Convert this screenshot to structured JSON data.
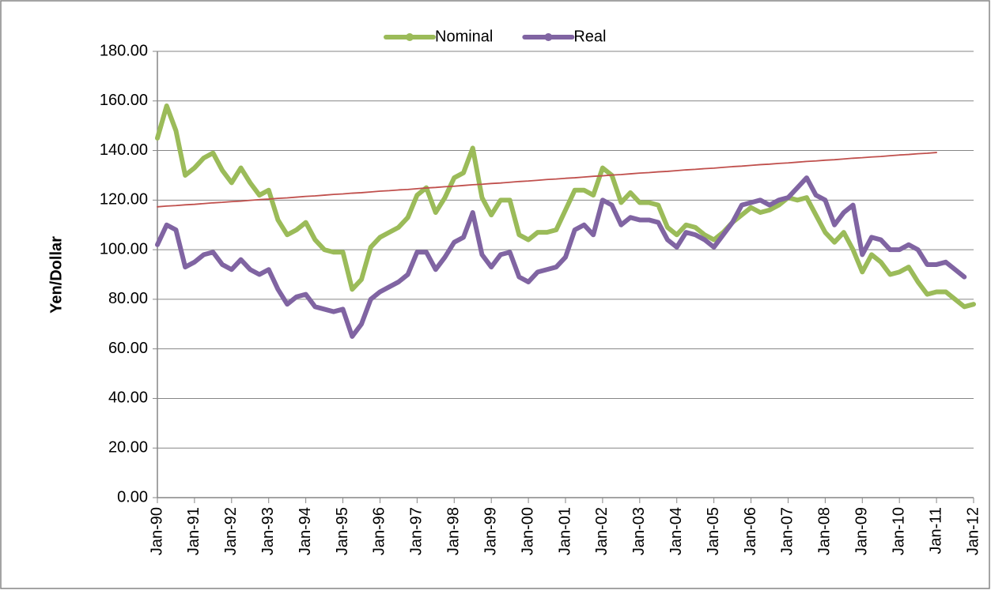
{
  "chart_data": {
    "type": "line",
    "y_label": "Yen/Dollar",
    "categories": [
      "Jan-90",
      null,
      null,
      null,
      "Jan-91",
      null,
      null,
      null,
      "Jan-92",
      null,
      null,
      null,
      "Jan-93",
      null,
      null,
      null,
      "Jan-94",
      null,
      null,
      null,
      "Jan-95",
      null,
      null,
      null,
      "Jan-96",
      null,
      null,
      null,
      "Jan-97",
      null,
      null,
      null,
      "Jan-98",
      null,
      null,
      null,
      "Jan-99",
      null,
      null,
      null,
      "Jan-00",
      null,
      null,
      null,
      "Jan-01",
      null,
      null,
      null,
      "Jan-02",
      null,
      null,
      null,
      "Jan-03",
      null,
      null,
      null,
      "Jan-04",
      null,
      null,
      null,
      "Jan-05",
      null,
      null,
      null,
      "Jan-06",
      null,
      null,
      null,
      "Jan-07",
      null,
      null,
      null,
      "Jan-08",
      null,
      null,
      null,
      "Jan-09",
      null,
      null,
      null,
      "Jan-10",
      null,
      null,
      null,
      "Jan-11",
      null,
      null,
      null,
      "Jan-12"
    ],
    "series": [
      {
        "name": "Nominal",
        "color": "#9bbb59",
        "values": [
          145,
          158,
          148,
          130,
          133,
          137,
          139,
          132,
          127,
          133,
          127,
          122,
          124,
          112,
          106,
          108,
          111,
          104,
          100,
          99,
          99,
          84,
          88,
          101,
          105,
          107,
          109,
          113,
          122,
          125,
          115,
          121,
          129,
          131,
          141,
          121,
          114,
          120,
          120,
          106,
          104,
          107,
          107,
          108,
          116,
          124,
          124,
          122,
          133,
          130,
          119,
          123,
          119,
          119,
          118,
          109,
          106,
          110,
          109,
          106,
          104,
          107,
          111,
          114,
          117,
          115,
          116,
          118,
          121,
          120,
          121,
          114,
          107,
          103,
          107,
          100,
          91,
          98,
          95,
          90,
          91,
          93,
          87,
          82,
          83,
          83,
          80,
          77,
          78
        ]
      },
      {
        "name": "Real",
        "color": "#8064a2",
        "values": [
          102,
          110,
          108,
          93,
          95,
          98,
          99,
          94,
          92,
          96,
          92,
          90,
          92,
          84,
          78,
          81,
          82,
          77,
          76,
          75,
          76,
          65,
          70,
          80,
          83,
          85,
          87,
          90,
          99,
          99,
          92,
          97,
          103,
          105,
          115,
          98,
          93,
          98,
          99,
          89,
          87,
          91,
          92,
          93,
          97,
          108,
          110,
          106,
          120,
          118,
          110,
          113,
          112,
          112,
          111,
          104,
          101,
          107,
          106,
          104,
          101,
          106,
          111,
          118,
          119,
          120,
          118,
          120,
          121,
          125,
          129,
          122,
          120,
          110,
          115,
          118,
          98,
          105,
          104,
          100,
          100,
          102,
          100,
          94,
          94,
          95,
          92,
          89,
          null
        ]
      }
    ],
    "trendline": {
      "color": "#c0504d",
      "values": [
        117.3,
        117.6,
        117.8,
        118.1,
        118.3,
        118.6,
        118.9,
        119.1,
        119.4,
        119.6,
        119.9,
        120.2,
        120.4,
        120.7,
        120.9,
        121.2,
        121.5,
        121.7,
        122.0,
        122.3,
        122.5,
        122.8,
        123.0,
        123.3,
        123.6,
        123.8,
        124.1,
        124.3,
        124.6,
        124.9,
        125.1,
        125.4,
        125.6,
        125.9,
        126.2,
        126.4,
        126.7,
        126.9,
        127.2,
        127.5,
        127.7,
        128.0,
        128.3,
        128.5,
        128.8,
        129.0,
        129.3,
        129.6,
        129.8,
        130.1,
        130.3,
        130.6,
        130.9,
        131.1,
        131.4,
        131.6,
        131.9,
        132.2,
        132.4,
        132.7,
        132.9,
        133.2,
        133.5,
        133.7,
        134.0,
        134.3,
        134.5,
        134.8,
        135.0,
        135.3,
        135.6,
        135.8,
        136.1,
        136.3,
        136.6,
        136.9,
        137.1,
        137.4,
        137.6,
        137.9,
        138.2,
        138.4,
        138.7,
        138.9,
        139.2,
        null,
        null,
        null,
        null
      ]
    },
    "ylim": [
      0,
      180
    ],
    "yticks": [
      {
        "value": 0,
        "label": "0.00"
      },
      {
        "value": 20,
        "label": "20.00"
      },
      {
        "value": 40,
        "label": "40.00"
      },
      {
        "value": 60,
        "label": "60.00"
      },
      {
        "value": 80,
        "label": "80.00"
      },
      {
        "value": 100,
        "label": "100.00"
      },
      {
        "value": 120,
        "label": "120.00"
      },
      {
        "value": 140,
        "label": "140.00"
      },
      {
        "value": 160,
        "label": "160.00"
      },
      {
        "value": 180,
        "label": "180.00"
      }
    ],
    "grid": true,
    "legend": "top"
  }
}
